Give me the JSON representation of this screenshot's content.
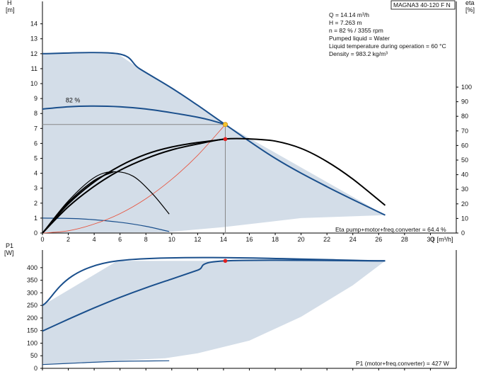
{
  "model_label": "MAGNA3 40-120 F N",
  "info_lines": [
    "Q = 14.14 m³/h",
    "H = 7.263 m",
    "n = 82 % / 3355 rpm",
    "Pumped liquid = Water",
    "Liquid temperature during operation = 60 °C",
    "Density = 983.2 kg/m³"
  ],
  "colors": {
    "area_fill": "#d3dde8",
    "curve_blue": "#1a4f8c",
    "curve_black": "#000000",
    "system_curve": "#e8503a",
    "grid_line": "#888888",
    "duty_point_yellow": "#f4c430",
    "duty_point_red": "#e02020"
  },
  "chart_data": [
    {
      "type": "line",
      "title": "",
      "ylabel_line1": "H",
      "ylabel_line2": "[m]",
      "y2label_line1": "eta",
      "y2label_line2": "[%]",
      "xlabel": "Q [m³/h]",
      "xlim": [
        0,
        32
      ],
      "ylim": [
        0,
        15.5
      ],
      "y2lim": [
        0,
        100
      ],
      "x_ticks": [
        "0",
        "2",
        "4",
        "6",
        "8",
        "10",
        "12",
        "14",
        "16",
        "18",
        "20",
        "22",
        "24",
        "26",
        "28",
        "30"
      ],
      "y_ticks": [
        "0",
        "1",
        "2",
        "3",
        "4",
        "5",
        "6",
        "7",
        "8",
        "9",
        "10",
        "11",
        "12",
        "13",
        "14"
      ],
      "y2_ticks": [
        "0",
        "10",
        "20",
        "30",
        "40",
        "50",
        "60",
        "70",
        "80",
        "90",
        "100"
      ],
      "curve_label": "82 %",
      "efficiency_label": "Eta pump+motor+freq.converter = 64.4 %",
      "operating_area": {
        "x": [
          0,
          5.8,
          7.5,
          10,
          14.14,
          26.5,
          26.5,
          20,
          14,
          9.5,
          0
        ],
        "y": [
          12,
          12,
          11,
          9.7,
          7.263,
          1.2,
          1.2,
          1.0,
          0.4,
          0.05,
          0
        ]
      },
      "series": [
        {
          "role": "max_curve",
          "x": [
            0,
            5.8,
            7.5,
            10,
            12,
            14.14,
            18,
            22,
            26.5
          ],
          "y": [
            12,
            12,
            11,
            9.7,
            8.55,
            7.263,
            5.0,
            3.1,
            1.2
          ]
        },
        {
          "role": "speed_82",
          "x": [
            0,
            2,
            4,
            6,
            8,
            10,
            12,
            13,
            14.14
          ],
          "y": [
            8.3,
            8.45,
            8.5,
            8.45,
            8.3,
            8.05,
            7.75,
            7.55,
            7.263
          ]
        },
        {
          "role": "min_curve",
          "x": [
            0,
            3,
            6,
            8,
            9.8
          ],
          "y": [
            1.0,
            0.95,
            0.72,
            0.45,
            0.1
          ]
        },
        {
          "role": "system_curve",
          "x": [
            0,
            2,
            4,
            6,
            8,
            10,
            12,
            14.14
          ],
          "y": [
            0,
            0.15,
            0.6,
            1.3,
            2.3,
            3.6,
            5.2,
            7.263
          ]
        },
        {
          "role": "eta_max",
          "x": [
            0,
            2,
            4,
            6,
            8,
            10,
            12,
            14.14,
            16,
            18,
            20,
            22,
            24,
            26.5
          ],
          "y_eta": [
            0,
            18,
            32,
            43,
            51,
            57,
            61,
            64.4,
            64.5,
            63,
            58,
            49,
            37,
            19
          ]
        },
        {
          "role": "eta_82",
          "x": [
            0,
            2,
            4,
            6,
            8,
            10,
            12,
            14.14
          ],
          "y_eta": [
            0,
            20,
            35,
            46,
            54,
            59,
            62,
            64.4
          ]
        },
        {
          "role": "eta_mid",
          "x": [
            0,
            2,
            4,
            5.5
          ],
          "y_eta": [
            0,
            21,
            36,
            42
          ]
        },
        {
          "role": "eta_min",
          "x": [
            0,
            2,
            4,
            5.5,
            7,
            8.5,
            9.8
          ],
          "y_eta": [
            0,
            22,
            38,
            42,
            39,
            27,
            13
          ]
        }
      ],
      "duty_point": {
        "x": 14.14,
        "y": 7.263,
        "eta": 64.4
      }
    },
    {
      "type": "line",
      "title": "",
      "ylabel_line1": "P1",
      "ylabel_line2": "[W]",
      "xlim": [
        0,
        32
      ],
      "ylim": [
        0,
        470
      ],
      "y_ticks": [
        "0",
        "50",
        "100",
        "150",
        "200",
        "250",
        "300",
        "350",
        "400"
      ],
      "power_label": "P1 (motor+freq.converter) = 427 W",
      "power_area": {
        "x": [
          0,
          5.8,
          26.5,
          24,
          20,
          16,
          12,
          9.5,
          0
        ],
        "y": [
          250,
          427,
          427,
          330,
          205,
          110,
          60,
          40,
          15
        ]
      },
      "series": [
        {
          "role": "p1_max",
          "x": [
            0,
            5.8,
            26.5
          ],
          "y": [
            250,
            427,
            427
          ]
        },
        {
          "role": "p1_82",
          "x": [
            0,
            2,
            4,
            6,
            8,
            10,
            12,
            14.14,
            26.5
          ],
          "y": [
            148,
            195,
            240,
            282,
            320,
            355,
            390,
            427,
            427
          ]
        },
        {
          "role": "p1_min",
          "x": [
            0,
            3,
            6,
            9.8
          ],
          "y": [
            15,
            22,
            28,
            30
          ]
        }
      ],
      "duty_point": {
        "x": 14.14,
        "y": 427
      }
    }
  ]
}
